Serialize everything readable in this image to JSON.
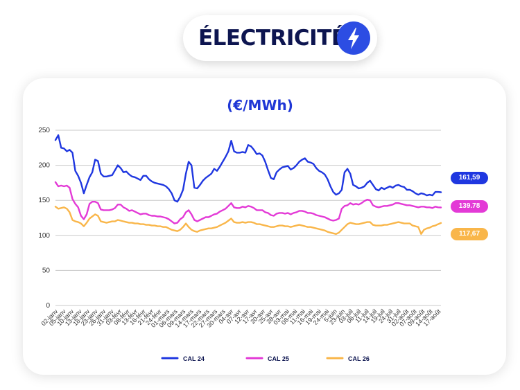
{
  "header": {
    "title": "ÉLECTRICITÉ",
    "icon": "lightning-bolt-icon"
  },
  "chart_data": {
    "type": "line",
    "title": "(€/MWh)",
    "ylim": [
      0,
      250
    ],
    "yticks": [
      0,
      50,
      100,
      150,
      200,
      250
    ],
    "grid": true,
    "legend_position": "bottom",
    "x_tick_labels": [
      "02-janv",
      "05-janv",
      "10-janv",
      "13-janv",
      "18-janv",
      "23-janv",
      "26-janv",
      "31-janv",
      "03-févr",
      "08-févr",
      "13-févr",
      "16-févr",
      "21-févr",
      "24-févr",
      "01-mars",
      "06-mars",
      "09-mars",
      "14-mars",
      "17-mars",
      "22-mars",
      "27-mars",
      "30-mars",
      "04-avr",
      "07-avr",
      "12-avr",
      "17-avr",
      "20-avr",
      "25-avr",
      "28-avr",
      "03-mai",
      "08-mai",
      "11-mai",
      "16-mai",
      "19-mai",
      "24-mai",
      "5-juin",
      "23-juin",
      "03-juil",
      "06-juil",
      "11-juil",
      "14-juil",
      "19-juil",
      "24-juil",
      "31-juil",
      "02-août",
      "07-août",
      "09-août",
      "14-août",
      "17-août"
    ],
    "series": [
      {
        "name": "CAL 24",
        "color": "#1f37e0",
        "last_label": "161,59",
        "values": [
          236,
          243,
          225,
          224,
          220,
          222,
          218,
          192,
          185,
          175,
          160,
          172,
          183,
          190,
          208,
          206,
          188,
          184,
          184,
          185,
          186,
          193,
          200,
          196,
          190,
          191,
          187,
          184,
          183,
          181,
          179,
          185,
          185,
          180,
          177,
          175,
          174,
          173,
          172,
          170,
          166,
          160,
          150,
          148,
          155,
          165,
          188,
          205,
          200,
          168,
          167,
          172,
          178,
          182,
          185,
          188,
          195,
          192,
          198,
          205,
          212,
          220,
          235,
          220,
          218,
          218,
          219,
          218,
          229,
          227,
          222,
          216,
          217,
          214,
          205,
          193,
          182,
          180,
          190,
          194,
          197,
          198,
          199,
          194,
          196,
          200,
          205,
          208,
          210,
          205,
          204,
          202,
          196,
          192,
          190,
          187,
          180,
          170,
          162,
          158,
          160,
          165,
          190,
          195,
          188,
          172,
          170,
          167,
          168,
          170,
          175,
          178,
          172,
          166,
          164,
          168,
          166,
          168,
          170,
          168,
          171,
          172,
          170,
          169,
          165,
          165,
          163,
          160,
          158,
          160,
          159,
          157,
          158,
          157,
          162,
          162,
          161.59
        ]
      },
      {
        "name": "CAL 25",
        "color": "#e33ad6",
        "last_label": "139.78",
        "values": [
          176,
          170,
          171,
          170,
          171,
          168,
          152,
          145,
          140,
          128,
          123,
          130,
          145,
          148,
          148,
          146,
          137,
          136,
          136,
          136,
          137,
          139,
          144,
          144,
          140,
          138,
          135,
          136,
          134,
          132,
          130,
          131,
          131,
          129,
          128,
          128,
          127,
          127,
          126,
          125,
          123,
          120,
          117,
          118,
          123,
          126,
          133,
          136,
          130,
          122,
          120,
          122,
          124,
          126,
          126,
          128,
          130,
          131,
          134,
          136,
          138,
          142,
          146,
          140,
          139,
          139,
          141,
          140,
          142,
          141,
          139,
          136,
          136,
          136,
          133,
          132,
          129,
          128,
          131,
          132,
          132,
          131,
          132,
          130,
          132,
          133,
          135,
          135,
          134,
          132,
          132,
          131,
          129,
          128,
          127,
          126,
          124,
          122,
          121,
          122,
          124,
          138,
          142,
          143,
          146,
          144,
          145,
          144,
          146,
          149,
          151,
          150,
          143,
          141,
          140,
          141,
          142,
          142,
          143,
          144,
          146,
          146,
          145,
          144,
          143,
          143,
          142,
          141,
          140,
          141,
          141,
          140,
          140,
          139,
          141,
          140,
          139.78
        ]
      },
      {
        "name": "CAL 26",
        "color": "#f9b64a",
        "last_label": "117,67",
        "values": [
          141,
          138,
          139,
          140,
          138,
          133,
          122,
          120,
          119,
          117,
          113,
          118,
          124,
          127,
          130,
          128,
          120,
          119,
          118,
          119,
          120,
          120,
          122,
          121,
          120,
          119,
          118,
          118,
          117,
          117,
          116,
          116,
          115,
          115,
          114,
          114,
          113,
          113,
          112,
          112,
          110,
          108,
          107,
          106,
          108,
          112,
          117,
          112,
          108,
          106,
          105,
          107,
          108,
          109,
          110,
          110,
          111,
          112,
          114,
          116,
          118,
          121,
          124,
          119,
          118,
          118,
          119,
          118,
          119,
          119,
          118,
          116,
          116,
          115,
          114,
          113,
          112,
          112,
          113,
          114,
          114,
          113,
          113,
          112,
          113,
          114,
          115,
          114,
          113,
          112,
          112,
          111,
          110,
          109,
          108,
          107,
          105,
          104,
          103,
          102,
          104,
          108,
          112,
          116,
          118,
          117,
          116,
          116,
          117,
          118,
          119,
          119,
          115,
          114,
          114,
          114,
          115,
          115,
          116,
          117,
          118,
          119,
          118,
          117,
          117,
          117,
          114,
          113,
          112,
          102,
          108,
          110,
          111,
          113,
          114,
          116,
          117.67
        ]
      }
    ]
  }
}
